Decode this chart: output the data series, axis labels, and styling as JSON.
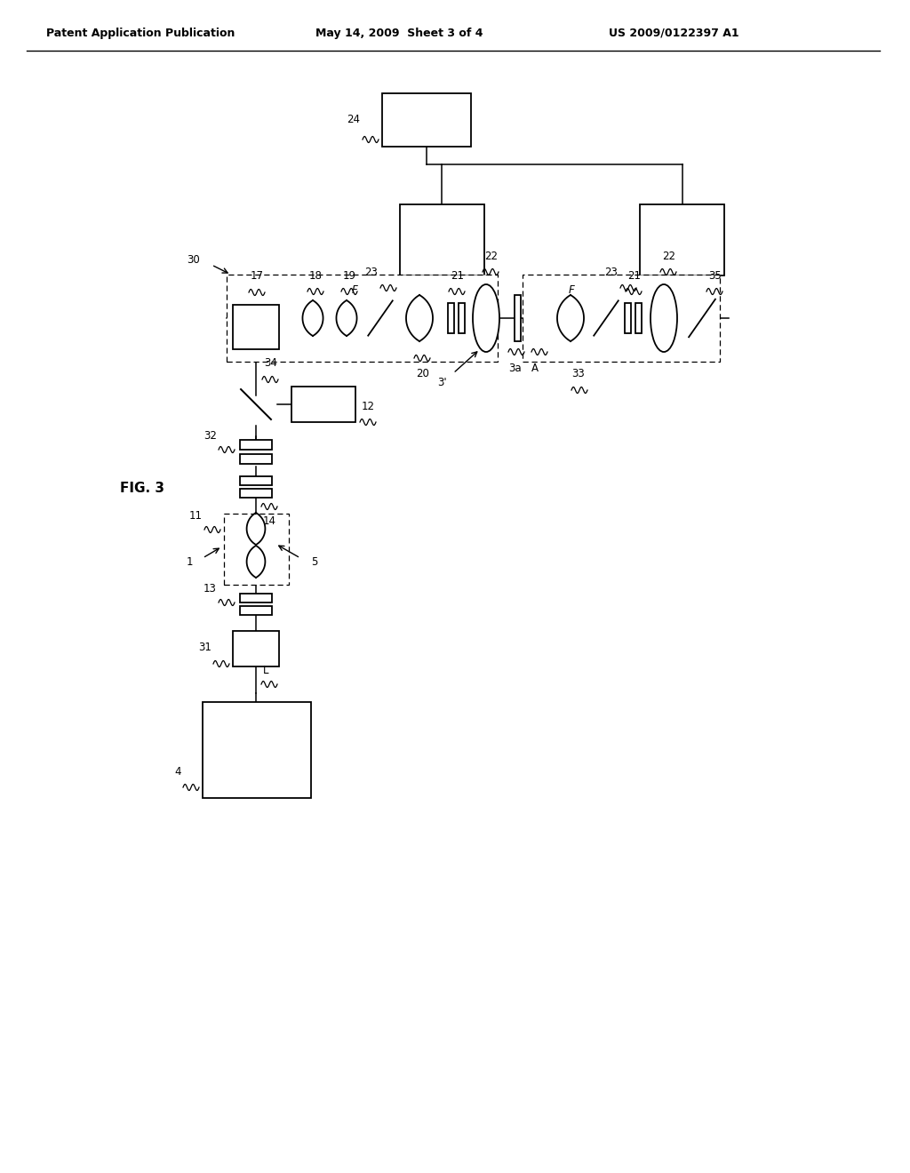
{
  "title": "FIG. 3",
  "header_left": "Patent Application Publication",
  "header_mid": "May 14, 2009  Sheet 3 of 4",
  "header_right": "US 2009/0122397 A1",
  "bg_color": "#ffffff",
  "line_color": "#000000",
  "fig_w": 10.24,
  "fig_h": 13.2
}
